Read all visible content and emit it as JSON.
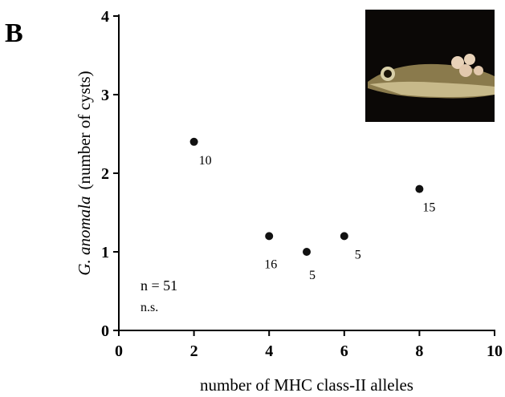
{
  "chart_data": {
    "type": "scatter",
    "panel_label": "B",
    "x_label": "number of MHC class-II alleles",
    "y_label_italic": "G. anomala",
    "y_label_rest": "(number of cysts)",
    "x": [
      2,
      4,
      5,
      6,
      8
    ],
    "values": [
      2.4,
      1.2,
      1.0,
      1.2,
      1.8
    ],
    "point_labels": [
      "10",
      "16",
      "5",
      "5",
      "15"
    ],
    "color": "#111111",
    "xlim": [
      0,
      10
    ],
    "xticks": [
      0,
      2,
      4,
      6,
      8,
      10
    ],
    "ylim": [
      0,
      4
    ],
    "yticks": [
      0,
      1,
      2,
      3,
      4
    ],
    "annotations": [
      "n = 51",
      "n.s."
    ],
    "grid": false
  }
}
